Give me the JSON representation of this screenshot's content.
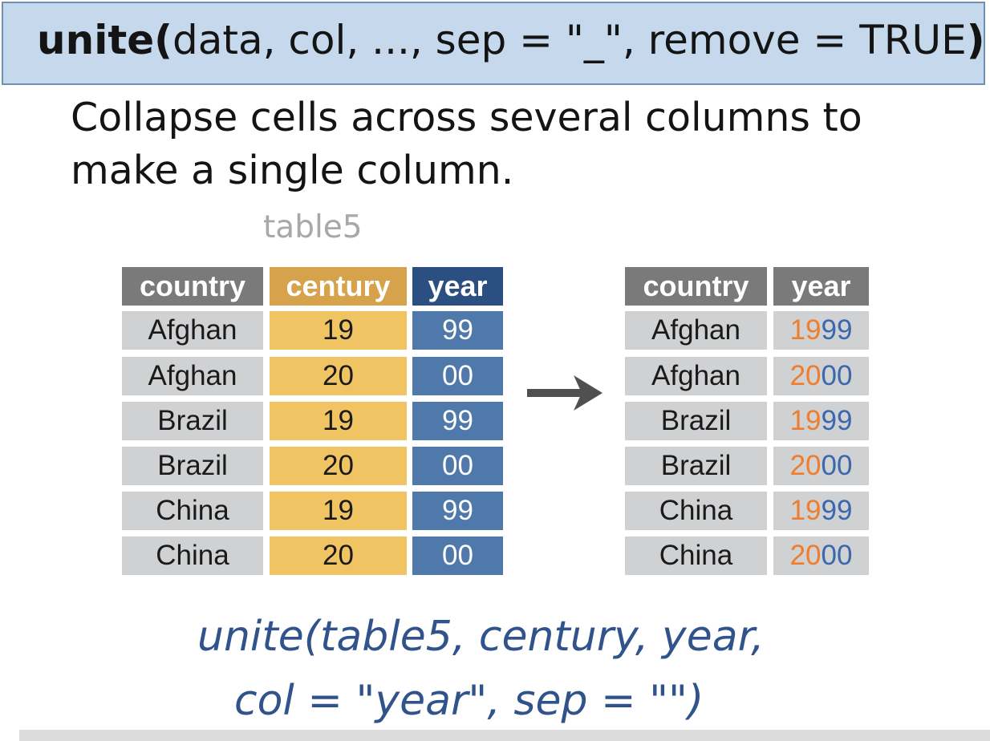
{
  "signature": {
    "fn": "unite",
    "open_paren": "(",
    "args": "data, col, ..., sep = \"_\", remove = TRUE",
    "close_paren": ")"
  },
  "description": "Collapse cells across several columns to make a single column.",
  "table_name": "table5",
  "input_table": {
    "headers": [
      "country",
      "century",
      "year"
    ],
    "rows": [
      [
        "Afghan",
        "19",
        "99"
      ],
      [
        "Afghan",
        "20",
        "00"
      ],
      [
        "Brazil",
        "19",
        "99"
      ],
      [
        "Brazil",
        "20",
        "00"
      ],
      [
        "China",
        "19",
        "99"
      ],
      [
        "China",
        "20",
        "00"
      ]
    ]
  },
  "output_table": {
    "headers": [
      "country",
      "year"
    ],
    "rows": [
      {
        "country": "Afghan",
        "century": "19",
        "year": "99"
      },
      {
        "country": "Afghan",
        "century": "20",
        "year": "00"
      },
      {
        "country": "Brazil",
        "century": "19",
        "year": "99"
      },
      {
        "country": "Brazil",
        "century": "20",
        "year": "00"
      },
      {
        "country": "China",
        "century": "19",
        "year": "99"
      },
      {
        "country": "China",
        "century": "20",
        "year": "00"
      }
    ]
  },
  "code": {
    "line1": "unite(table5, century, year,",
    "line2": "col = \"year\", sep = \"\")"
  },
  "colors": {
    "header_gray": "#7a7a7a",
    "header_gold": "#d6a24c",
    "header_navy": "#2b4f81",
    "cell_gray": "#d0d1d3",
    "cell_gold": "#f0c463",
    "cell_blue": "#4f79aa",
    "text_orange": "#ee7d2c",
    "text_blue": "#3a67ad",
    "code_blue": "#31538c"
  }
}
